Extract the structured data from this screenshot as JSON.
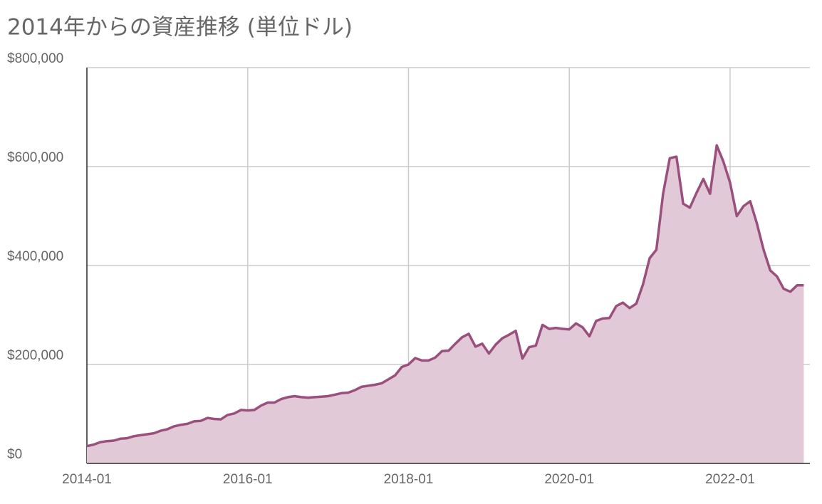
{
  "chart_data": {
    "type": "area",
    "title": "2014年からの資産推移 (単位ドル)",
    "color": "#9a4f7d",
    "fill": "#e1c9d7",
    "grid": true,
    "x": [
      "2014-01",
      "2014-02",
      "2014-03",
      "2014-04",
      "2014-05",
      "2014-06",
      "2014-07",
      "2014-08",
      "2014-09",
      "2014-10",
      "2014-11",
      "2014-12",
      "2015-01",
      "2015-02",
      "2015-03",
      "2015-04",
      "2015-05",
      "2015-06",
      "2015-07",
      "2015-08",
      "2015-09",
      "2015-10",
      "2015-11",
      "2015-12",
      "2016-01",
      "2016-02",
      "2016-03",
      "2016-04",
      "2016-05",
      "2016-06",
      "2016-07",
      "2016-08",
      "2016-09",
      "2016-10",
      "2016-11",
      "2016-12",
      "2017-01",
      "2017-02",
      "2017-03",
      "2017-04",
      "2017-05",
      "2017-06",
      "2017-07",
      "2017-08",
      "2017-09",
      "2017-10",
      "2017-11",
      "2017-12",
      "2018-01",
      "2018-02",
      "2018-03",
      "2018-04",
      "2018-05",
      "2018-06",
      "2018-07",
      "2018-08",
      "2018-09",
      "2018-10",
      "2018-11",
      "2018-12",
      "2019-01",
      "2019-02",
      "2019-03",
      "2019-04",
      "2019-05",
      "2019-06",
      "2019-07",
      "2019-08",
      "2019-09",
      "2019-10",
      "2019-11",
      "2019-12",
      "2020-01",
      "2020-02",
      "2020-03",
      "2020-04",
      "2020-05",
      "2020-06",
      "2020-07",
      "2020-08",
      "2020-09",
      "2020-10",
      "2020-11",
      "2020-12",
      "2021-01",
      "2021-02",
      "2021-03",
      "2021-04",
      "2021-05",
      "2021-06",
      "2021-07",
      "2021-08",
      "2021-09",
      "2021-10",
      "2021-11",
      "2021-12",
      "2022-01",
      "2022-02",
      "2022-03",
      "2022-04",
      "2022-05",
      "2022-06",
      "2022-07",
      "2022-08",
      "2022-09",
      "2022-10",
      "2022-11",
      "2022-12"
    ],
    "values": [
      35000,
      38000,
      43000,
      45000,
      46000,
      50000,
      51000,
      55000,
      57000,
      59000,
      61000,
      66000,
      69000,
      75000,
      78000,
      80000,
      85000,
      86000,
      92000,
      90000,
      89000,
      98000,
      101000,
      108000,
      107000,
      108000,
      117000,
      123000,
      123000,
      130000,
      134000,
      136000,
      134000,
      133000,
      134000,
      135000,
      136000,
      139000,
      142000,
      143000,
      148000,
      155000,
      157000,
      159000,
      162000,
      170000,
      178000,
      195000,
      200000,
      213000,
      208000,
      208000,
      214000,
      227000,
      228000,
      242000,
      255000,
      262000,
      236000,
      242000,
      222000,
      240000,
      253000,
      260000,
      268000,
      212000,
      235000,
      238000,
      280000,
      272000,
      274000,
      272000,
      271000,
      283000,
      275000,
      257000,
      288000,
      293000,
      294000,
      318000,
      325000,
      314000,
      323000,
      362000,
      415000,
      432000,
      545000,
      617000,
      620000,
      525000,
      517000,
      547000,
      575000,
      545000,
      643000,
      610000,
      567000,
      500000,
      520000,
      530000,
      485000,
      432000,
      390000,
      378000,
      353000,
      347000,
      360000,
      360000
    ],
    "xticks": [
      "2014-01",
      "2016-01",
      "2018-01",
      "2020-01",
      "2022-01"
    ],
    "ylim": [
      0,
      800000
    ],
    "yticks": [
      {
        "value": 0,
        "label": "$0"
      },
      {
        "value": 200000,
        "label": "$200,000"
      },
      {
        "value": 400000,
        "label": "$400,000"
      },
      {
        "value": 600000,
        "label": "$600,000"
      },
      {
        "value": 800000,
        "label": "$800,000"
      }
    ]
  }
}
